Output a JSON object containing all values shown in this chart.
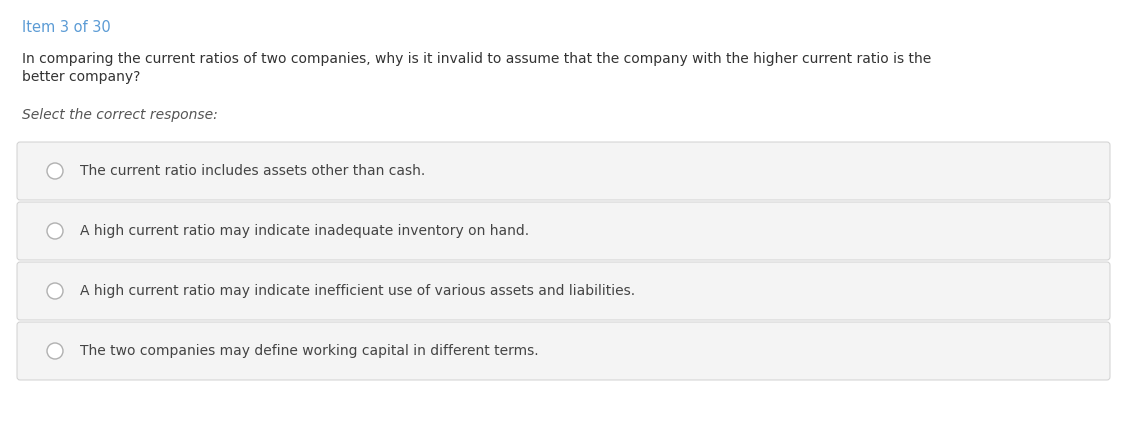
{
  "item_label": "Item 3 of 30",
  "item_label_color": "#5b9bd5",
  "question_line1": "In comparing the current ratios of two companies, why is it invalid to assume that the company with the higher current ratio is the",
  "question_line2": "better company?",
  "instruction": "Select the correct response:",
  "options": [
    "The current ratio includes assets other than cash.",
    "A high current ratio may indicate inadequate inventory on hand.",
    "A high current ratio may indicate inefficient use of various assets and liabilities.",
    "The two companies may define working capital in different terms."
  ],
  "background_color": "#ffffff",
  "option_box_color": "#f4f4f4",
  "option_box_border": "#d0d0d0",
  "option_text_color": "#444444",
  "question_text_color": "#333333",
  "instruction_text_color": "#555555",
  "radio_border_color": "#b0b0b0",
  "radio_fill_color": "#ffffff",
  "figsize": [
    11.27,
    4.22
  ],
  "dpi": 100
}
